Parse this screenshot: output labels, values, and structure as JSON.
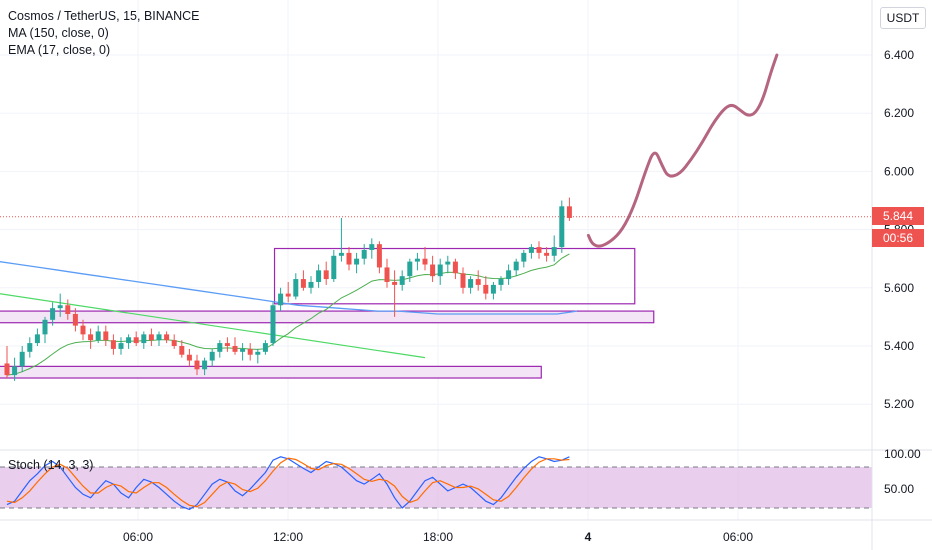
{
  "header": {
    "symbol_line": "Cosmos / TetherUS, 15, BINANCE",
    "ma_line": "MA (150, close, 0)",
    "ema_line": "EMA (17, close, 0)",
    "currency": "USDT"
  },
  "price_tags": {
    "last_price": "5.844",
    "countdown": "00:56"
  },
  "oscillator": {
    "label": "Stoch (14, 3, 3)"
  },
  "colors": {
    "up": "#26a69a",
    "down": "#ef5350",
    "ma": "#5b9cf6",
    "ema": "#4caf50",
    "box": "#9c27b0",
    "box_fill": "#f3e5f5",
    "trend": "#4cd964",
    "projection": "#b5657f",
    "stoch_k": "#2962ff",
    "stoch_d": "#ff6d00",
    "stoch_band": "#e1bee7"
  },
  "chart_data": {
    "type": "candlestick",
    "price_axis": {
      "ticks": [
        6.4,
        6.2,
        6.0,
        5.8,
        5.6,
        5.4,
        5.2
      ],
      "tick_labels": [
        "6.400",
        "6.200",
        "6.000",
        "5.800",
        "5.600",
        "5.400",
        "5.200"
      ]
    },
    "time_axis": {
      "labels": [
        "06:00",
        "12:00",
        "18:00",
        "4",
        "06:00"
      ]
    },
    "stoch_axis": {
      "tick_labels": [
        "100.00",
        "50.00"
      ],
      "band": [
        20,
        80
      ]
    },
    "candles": [
      [
        5.34,
        5.4,
        5.29,
        5.3
      ],
      [
        5.3,
        5.36,
        5.28,
        5.33
      ],
      [
        5.33,
        5.4,
        5.31,
        5.38
      ],
      [
        5.38,
        5.43,
        5.36,
        5.41
      ],
      [
        5.41,
        5.46,
        5.4,
        5.44
      ],
      [
        5.44,
        5.5,
        5.41,
        5.49
      ],
      [
        5.49,
        5.55,
        5.47,
        5.53
      ],
      [
        5.53,
        5.58,
        5.5,
        5.54
      ],
      [
        5.54,
        5.56,
        5.49,
        5.51
      ],
      [
        5.51,
        5.53,
        5.45,
        5.47
      ],
      [
        5.47,
        5.49,
        5.42,
        5.44
      ],
      [
        5.44,
        5.46,
        5.39,
        5.42
      ],
      [
        5.42,
        5.47,
        5.41,
        5.45
      ],
      [
        5.45,
        5.47,
        5.4,
        5.42
      ],
      [
        5.42,
        5.44,
        5.37,
        5.39
      ],
      [
        5.39,
        5.43,
        5.37,
        5.41
      ],
      [
        5.41,
        5.44,
        5.39,
        5.43
      ],
      [
        5.43,
        5.45,
        5.4,
        5.41
      ],
      [
        5.41,
        5.45,
        5.39,
        5.44
      ],
      [
        5.44,
        5.46,
        5.4,
        5.42
      ],
      [
        5.42,
        5.45,
        5.4,
        5.44
      ],
      [
        5.44,
        5.45,
        5.41,
        5.42
      ],
      [
        5.42,
        5.44,
        5.39,
        5.4
      ],
      [
        5.4,
        5.42,
        5.36,
        5.37
      ],
      [
        5.37,
        5.39,
        5.33,
        5.35
      ],
      [
        5.35,
        5.37,
        5.3,
        5.32
      ],
      [
        5.32,
        5.36,
        5.3,
        5.35
      ],
      [
        5.35,
        5.39,
        5.33,
        5.38
      ],
      [
        5.38,
        5.42,
        5.36,
        5.41
      ],
      [
        5.41,
        5.43,
        5.38,
        5.4
      ],
      [
        5.4,
        5.43,
        5.37,
        5.38
      ],
      [
        5.38,
        5.41,
        5.35,
        5.39
      ],
      [
        5.39,
        5.41,
        5.35,
        5.37
      ],
      [
        5.37,
        5.39,
        5.34,
        5.38
      ],
      [
        5.38,
        5.42,
        5.37,
        5.41
      ],
      [
        5.41,
        5.55,
        5.4,
        5.54
      ],
      [
        5.54,
        5.6,
        5.52,
        5.58
      ],
      [
        5.58,
        5.62,
        5.55,
        5.57
      ],
      [
        5.57,
        5.65,
        5.56,
        5.63
      ],
      [
        5.63,
        5.66,
        5.59,
        5.6
      ],
      [
        5.6,
        5.64,
        5.58,
        5.62
      ],
      [
        5.62,
        5.68,
        5.6,
        5.66
      ],
      [
        5.66,
        5.69,
        5.61,
        5.63
      ],
      [
        5.63,
        5.73,
        5.62,
        5.71
      ],
      [
        5.71,
        5.84,
        5.69,
        5.72
      ],
      [
        5.72,
        5.74,
        5.66,
        5.68
      ],
      [
        5.68,
        5.72,
        5.65,
        5.7
      ],
      [
        5.7,
        5.75,
        5.68,
        5.73
      ],
      [
        5.73,
        5.77,
        5.7,
        5.75
      ],
      [
        5.75,
        5.76,
        5.65,
        5.67
      ],
      [
        5.67,
        5.7,
        5.6,
        5.62
      ],
      [
        5.62,
        5.66,
        5.5,
        5.61
      ],
      [
        5.61,
        5.66,
        5.59,
        5.64
      ],
      [
        5.64,
        5.7,
        5.62,
        5.69
      ],
      [
        5.69,
        5.72,
        5.66,
        5.7
      ],
      [
        5.7,
        5.74,
        5.66,
        5.68
      ],
      [
        5.68,
        5.71,
        5.62,
        5.64
      ],
      [
        5.64,
        5.7,
        5.61,
        5.68
      ],
      [
        5.68,
        5.71,
        5.65,
        5.69
      ],
      [
        5.69,
        5.7,
        5.63,
        5.65
      ],
      [
        5.65,
        5.67,
        5.58,
        5.6
      ],
      [
        5.6,
        5.64,
        5.58,
        5.63
      ],
      [
        5.63,
        5.66,
        5.59,
        5.61
      ],
      [
        5.61,
        5.64,
        5.56,
        5.58
      ],
      [
        5.58,
        5.62,
        5.56,
        5.61
      ],
      [
        5.61,
        5.64,
        5.59,
        5.63
      ],
      [
        5.63,
        5.68,
        5.61,
        5.66
      ],
      [
        5.66,
        5.7,
        5.64,
        5.69
      ],
      [
        5.69,
        5.73,
        5.67,
        5.72
      ],
      [
        5.72,
        5.75,
        5.7,
        5.74
      ],
      [
        5.74,
        5.76,
        5.7,
        5.72
      ],
      [
        5.72,
        5.74,
        5.69,
        5.71
      ],
      [
        5.71,
        5.78,
        5.69,
        5.74
      ],
      [
        5.74,
        5.9,
        5.72,
        5.88
      ],
      [
        5.88,
        5.91,
        5.83,
        5.84
      ]
    ],
    "stoch_k": [
      25,
      30,
      45,
      60,
      70,
      82,
      88,
      80,
      65,
      50,
      40,
      35,
      48,
      60,
      55,
      42,
      35,
      50,
      62,
      58,
      50,
      40,
      30,
      22,
      18,
      25,
      40,
      55,
      62,
      58,
      45,
      38,
      48,
      60,
      72,
      90,
      95,
      92,
      85,
      78,
      72,
      80,
      88,
      85,
      80,
      70,
      60,
      55,
      62,
      70,
      55,
      35,
      20,
      30,
      45,
      60,
      65,
      55,
      45,
      50,
      55,
      50,
      40,
      30,
      25,
      35,
      50,
      65,
      78,
      88,
      95,
      92,
      88,
      90,
      95
    ],
    "stoch_d": [
      30,
      28,
      35,
      45,
      58,
      70,
      80,
      84,
      78,
      65,
      52,
      42,
      42,
      50,
      55,
      52,
      44,
      42,
      50,
      57,
      57,
      50,
      40,
      31,
      24,
      22,
      28,
      40,
      52,
      58,
      55,
      47,
      44,
      49,
      60,
      74,
      86,
      93,
      91,
      85,
      78,
      76,
      82,
      85,
      84,
      78,
      70,
      62,
      59,
      62,
      60,
      52,
      37,
      28,
      32,
      45,
      57,
      60,
      55,
      50,
      50,
      52,
      48,
      40,
      32,
      30,
      37,
      50,
      64,
      77,
      87,
      92,
      92,
      90,
      91
    ],
    "ma150": [
      5.69,
      5.68,
      5.67,
      5.66,
      5.65,
      5.64,
      5.63,
      5.62,
      5.61,
      5.6,
      5.59,
      5.58,
      5.57,
      5.56,
      5.55,
      5.54,
      5.535,
      5.53,
      5.525,
      5.52,
      5.52,
      5.515,
      5.51,
      5.51,
      5.51,
      5.51,
      5.51,
      5.51,
      5.51,
      5.52
    ],
    "ema17_note": "",
    "overlays": {
      "rect_boxes": [
        {
          "t0": 35.2,
          "t1": 82.6,
          "p0": 5.735,
          "p1": 5.545
        },
        {
          "t0": -1,
          "t1": 85.1,
          "p0": 5.52,
          "p1": 5.48
        },
        {
          "t0": -1,
          "t1": 70.3,
          "p0": 5.33,
          "p1": 5.29
        }
      ],
      "trendline": {
        "t0": -1,
        "p0": 5.58,
        "t1": 55,
        "p1": 5.36
      },
      "projection": [
        [
          76.5,
          5.78
        ],
        [
          77,
          5.75
        ],
        [
          78,
          5.74
        ],
        [
          79.5,
          5.76
        ],
        [
          81,
          5.8
        ],
        [
          82.5,
          5.88
        ],
        [
          84,
          6.0
        ],
        [
          85.2,
          6.08
        ],
        [
          86.2,
          6.02
        ],
        [
          87,
          5.98
        ],
        [
          88.5,
          5.99
        ],
        [
          90,
          6.04
        ],
        [
          91.5,
          6.1
        ],
        [
          93,
          6.17
        ],
        [
          94.5,
          6.22
        ],
        [
          95.5,
          6.23
        ],
        [
          96.5,
          6.21
        ],
        [
          97.5,
          6.19
        ],
        [
          98.5,
          6.2
        ],
        [
          99.5,
          6.25
        ],
        [
          100.5,
          6.34
        ],
        [
          101.3,
          6.4
        ]
      ]
    }
  }
}
